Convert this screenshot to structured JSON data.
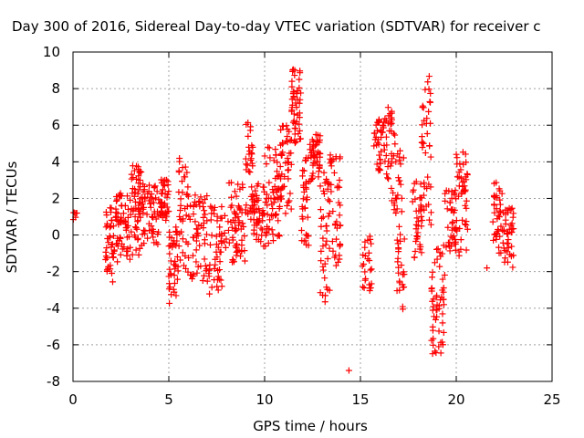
{
  "chart_data": {
    "type": "scatter",
    "title": "Day 300 of 2016, Sidereal Day-to-day VTEC variation (SDTVAR) for receiver c",
    "xlabel": "GPS time / hours",
    "ylabel": "SDTVAR / TECUs",
    "xlim": [
      0,
      25
    ],
    "ylim": [
      -8,
      10
    ],
    "xticks": [
      0,
      5,
      10,
      15,
      20,
      25
    ],
    "yticks": [
      -8,
      -6,
      -4,
      -2,
      0,
      2,
      4,
      6,
      8,
      10
    ],
    "grid": true,
    "marker": "+",
    "series": [
      {
        "name": "SDTVAR",
        "color": "#ff0000",
        "segments": [
          {
            "x": [
              0.0,
              0.2
            ],
            "y": [
              0.8,
              1.3
            ],
            "density": 6
          },
          {
            "x": [
              1.7,
              2.2
            ],
            "y": [
              -2.6,
              1.5
            ],
            "density": 40
          },
          {
            "x": [
              2.2,
              3.0
            ],
            "y": [
              -1.5,
              2.5
            ],
            "density": 60
          },
          {
            "x": [
              3.0,
              3.6
            ],
            "y": [
              -1.2,
              3.8
            ],
            "density": 55
          },
          {
            "x": [
              3.6,
              4.5
            ],
            "y": [
              -0.8,
              2.8
            ],
            "density": 55
          },
          {
            "x": [
              4.5,
              5.0
            ],
            "y": [
              0.8,
              3.1
            ],
            "density": 40
          },
          {
            "x": [
              5.0,
              5.5
            ],
            "y": [
              -3.8,
              0.5
            ],
            "density": 40
          },
          {
            "x": [
              5.5,
              6.0
            ],
            "y": [
              -2.0,
              4.2
            ],
            "density": 35
          },
          {
            "x": [
              6.0,
              7.0
            ],
            "y": [
              -2.5,
              2.2
            ],
            "density": 60
          },
          {
            "x": [
              7.0,
              8.0
            ],
            "y": [
              -3.4,
              1.8
            ],
            "density": 55
          },
          {
            "x": [
              8.0,
              9.0
            ],
            "y": [
              -1.5,
              3.0
            ],
            "density": 60
          },
          {
            "x": [
              9.0,
              9.4
            ],
            "y": [
              0.5,
              6.2
            ],
            "density": 35
          },
          {
            "x": [
              9.4,
              10.0
            ],
            "y": [
              -0.8,
              2.8
            ],
            "density": 45
          },
          {
            "x": [
              10.0,
              10.8
            ],
            "y": [
              -0.8,
              4.8
            ],
            "density": 60
          },
          {
            "x": [
              10.8,
              11.4
            ],
            "y": [
              1.0,
              6.0
            ],
            "density": 45
          },
          {
            "x": [
              11.4,
              11.9
            ],
            "y": [
              5.0,
              9.2
            ],
            "density": 50
          },
          {
            "x": [
              11.9,
              12.3
            ],
            "y": [
              -0.8,
              4.5
            ],
            "density": 35
          },
          {
            "x": [
              12.3,
              12.9
            ],
            "y": [
              2.8,
              5.5
            ],
            "density": 45
          },
          {
            "x": [
              12.9,
              13.4
            ],
            "y": [
              -3.8,
              3.5
            ],
            "density": 40
          },
          {
            "x": [
              13.4,
              14.0
            ],
            "y": [
              -2.0,
              4.5
            ],
            "density": 40
          },
          {
            "x": [
              14.4,
              14.4
            ],
            "y": [
              -7.4,
              -7.4
            ],
            "density": 1
          },
          {
            "x": [
              15.1,
              15.6
            ],
            "y": [
              -3.6,
              0.0
            ],
            "density": 25
          },
          {
            "x": [
              15.7,
              16.3
            ],
            "y": [
              3.5,
              6.5
            ],
            "density": 40
          },
          {
            "x": [
              16.3,
              16.9
            ],
            "y": [
              1.0,
              7.0
            ],
            "density": 40
          },
          {
            "x": [
              16.9,
              17.3
            ],
            "y": [
              -4.2,
              4.8
            ],
            "density": 40
          },
          {
            "x": [
              17.7,
              18.2
            ],
            "y": [
              -1.5,
              3.0
            ],
            "density": 35
          },
          {
            "x": [
              18.2,
              18.7
            ],
            "y": [
              0.5,
              9.2
            ],
            "density": 40
          },
          {
            "x": [
              18.7,
              19.4
            ],
            "y": [
              -6.5,
              -0.5
            ],
            "density": 55
          },
          {
            "x": [
              19.4,
              20.0
            ],
            "y": [
              -1.0,
              2.5
            ],
            "density": 40
          },
          {
            "x": [
              20.0,
              20.6
            ],
            "y": [
              -1.5,
              4.6
            ],
            "density": 45
          },
          {
            "x": [
              21.6,
              21.8
            ],
            "y": [
              -1.8,
              -1.8
            ],
            "density": 1
          },
          {
            "x": [
              21.9,
              22.4
            ],
            "y": [
              -1.0,
              3.0
            ],
            "density": 35
          },
          {
            "x": [
              22.4,
              23.0
            ],
            "y": [
              -1.8,
              1.5
            ],
            "density": 40
          }
        ]
      }
    ]
  }
}
